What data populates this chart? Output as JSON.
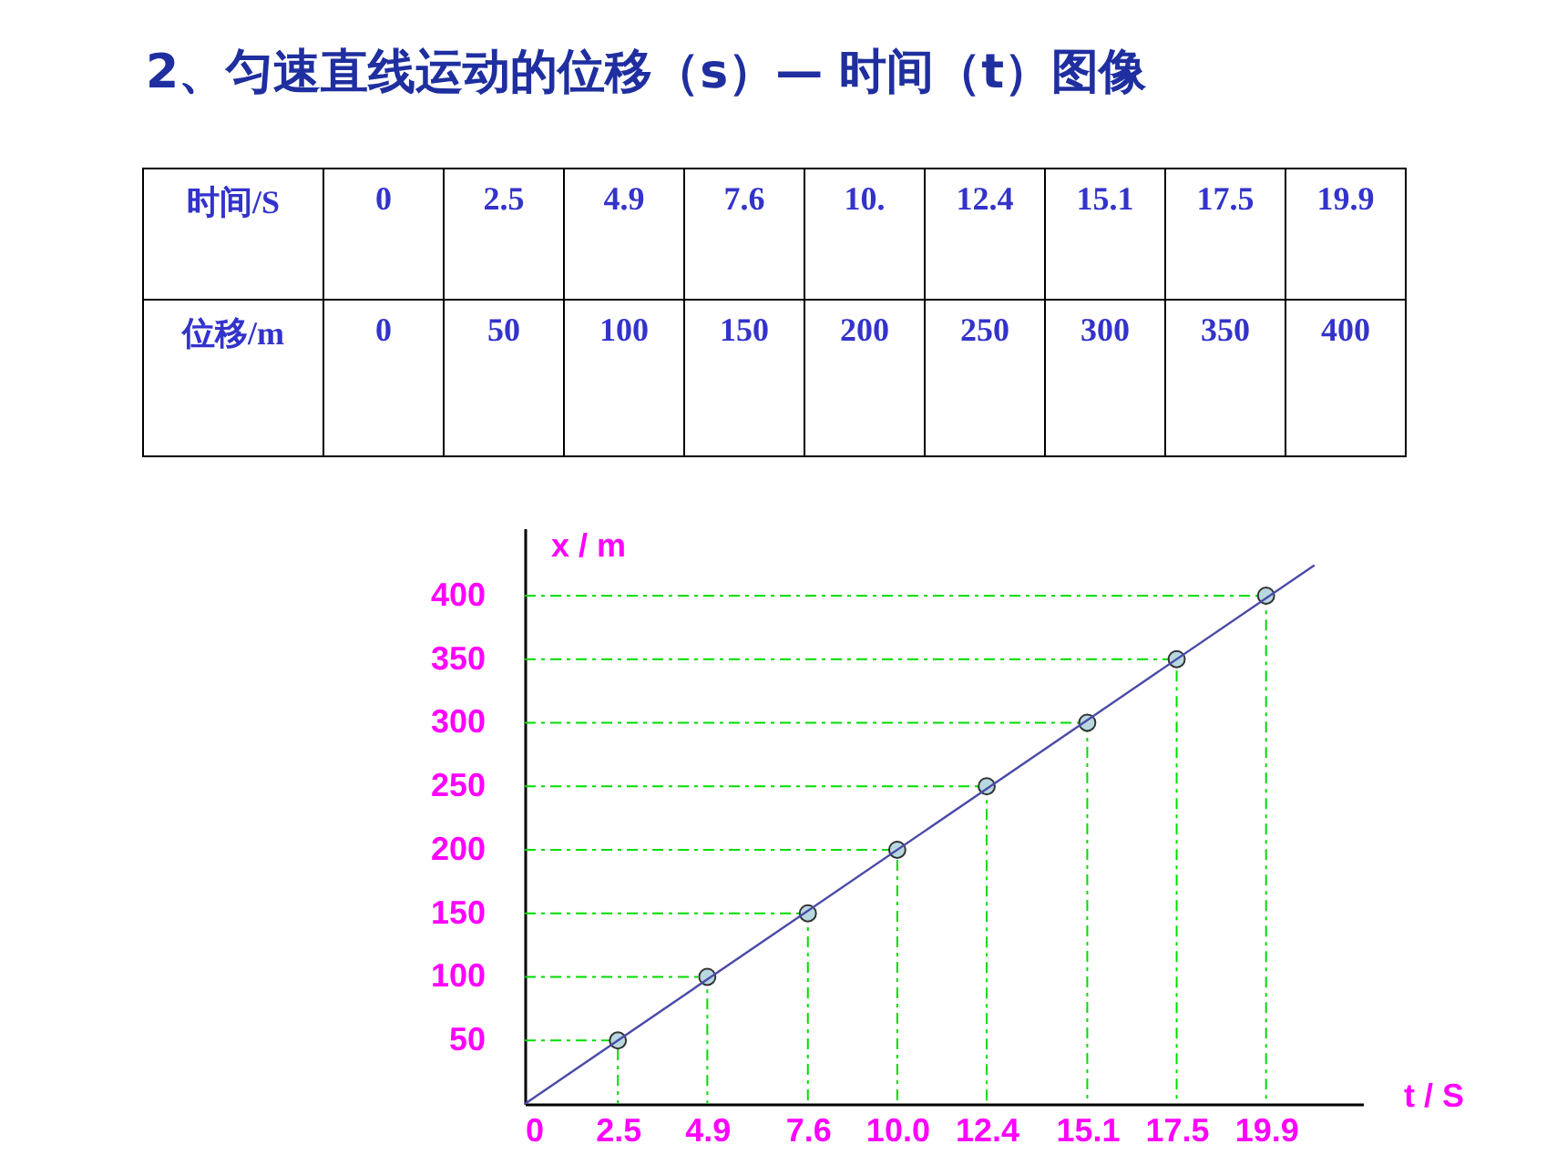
{
  "chart_data": [
    {
      "type": "other",
      "title": "2、匀速直线运动的位移（s）— 时间（t）图像",
      "annotations": [
        "时间/S",
        "0",
        "2.5",
        "4.9",
        "7.6",
        "10.",
        "12.4",
        "15.1",
        "17.5",
        "19.9",
        "位移/m",
        "0",
        "50",
        "100",
        "150",
        "200",
        "250",
        "300",
        "350",
        "400"
      ]
    },
    {
      "type": "scatter",
      "xlabel": "t / S",
      "ylabel": "x / m",
      "xlim": [
        0,
        22.5
      ],
      "ylim": [
        0,
        453
      ],
      "xticks": [
        0,
        2.5,
        4.9,
        7.6,
        {
          "value": 10,
          "label": "10.0"
        },
        12.4,
        15.1,
        17.5,
        19.9
      ],
      "yticks": [
        50,
        100,
        150,
        200,
        250,
        300,
        350,
        400
      ],
      "series": [
        {
          "type": "line",
          "color": "#00dd00",
          "line_style": "dashed",
          "x": [
            0,
            2.5,
            2.5
          ],
          "values": [
            50,
            50,
            0
          ]
        },
        {
          "type": "line",
          "color": "#00dd00",
          "line_style": "dashed",
          "x": [
            0,
            4.9,
            4.9
          ],
          "values": [
            100,
            100,
            0
          ]
        },
        {
          "type": "line",
          "color": "#00dd00",
          "line_style": "dashed",
          "x": [
            0,
            7.6,
            7.6
          ],
          "values": [
            150,
            150,
            0
          ]
        },
        {
          "type": "line",
          "color": "#00dd00",
          "line_style": "dashed",
          "x": [
            0,
            10,
            10
          ],
          "values": [
            200,
            200,
            0
          ]
        },
        {
          "type": "line",
          "color": "#00dd00",
          "line_style": "dashed",
          "x": [
            0,
            12.4,
            12.4
          ],
          "values": [
            250,
            250,
            0
          ]
        },
        {
          "type": "line",
          "color": "#00dd00",
          "line_style": "dashed",
          "x": [
            0,
            15.1,
            15.1
          ],
          "values": [
            300,
            300,
            0
          ]
        },
        {
          "type": "line",
          "color": "#00dd00",
          "line_style": "dashed",
          "x": [
            0,
            17.5,
            17.5
          ],
          "values": [
            350,
            350,
            0
          ]
        },
        {
          "type": "line",
          "color": "#00dd00",
          "line_style": "dashed",
          "x": [
            0,
            19.9,
            19.9
          ],
          "values": [
            400,
            400,
            0
          ]
        },
        {
          "type": "scatter",
          "marker": "circle",
          "color": "#b8d8e0",
          "x": [
            2.5,
            4.9,
            7.6,
            10,
            12.4,
            15.1,
            17.5,
            19.9
          ],
          "values": [
            50,
            100,
            150,
            200,
            250,
            300,
            350,
            400
          ]
        },
        {
          "type": "line",
          "color": "#4a4aa8",
          "x": [
            0,
            21.2
          ],
          "values": [
            0,
            424
          ]
        }
      ]
    }
  ]
}
